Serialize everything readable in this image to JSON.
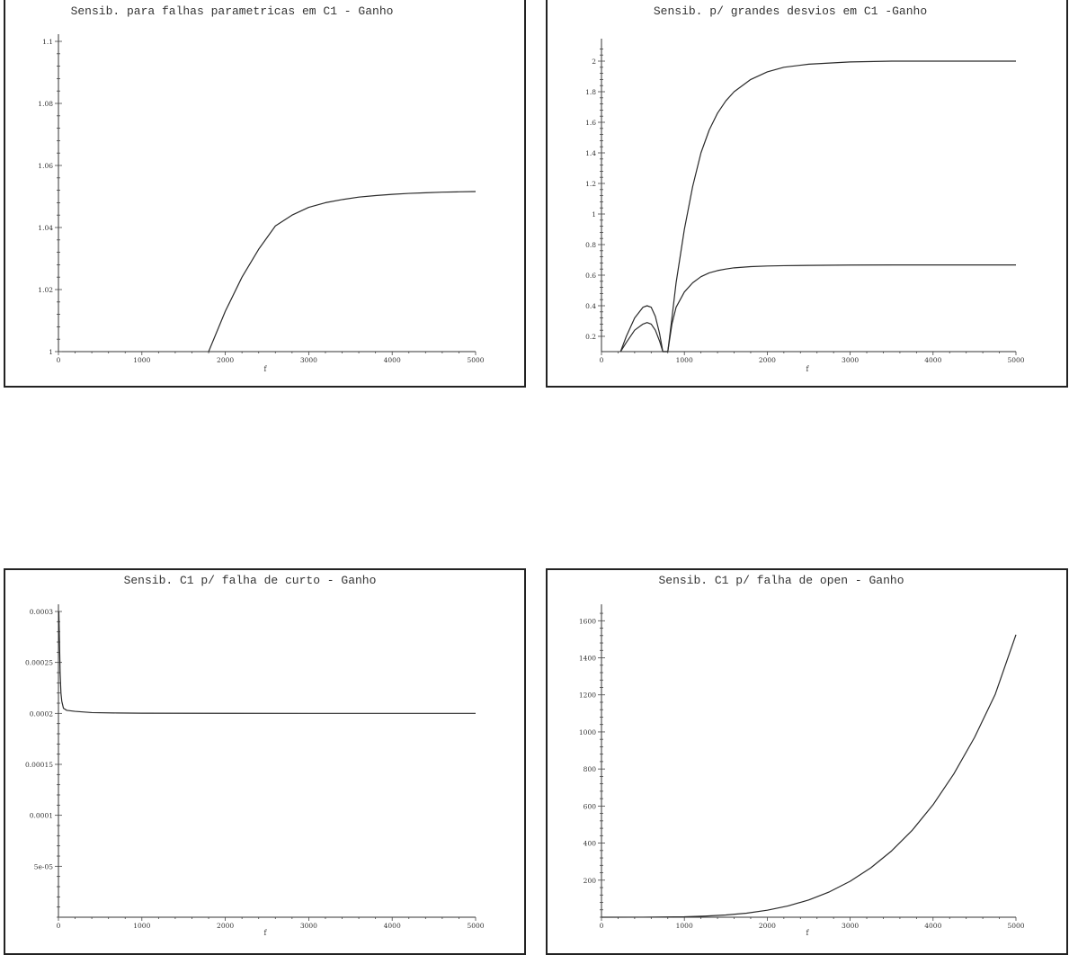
{
  "colors": {
    "line": "#2a2a2a",
    "axis": "#333333",
    "frame": "#222222",
    "background": "#ffffff"
  },
  "chart_data": [
    {
      "type": "line",
      "title": "Sensib. para falhas parametricas em  C1 - Ganho",
      "xlabel": "f",
      "ylabel": "",
      "xlim": [
        0,
        5000
      ],
      "ylim": [
        1,
        1.1
      ],
      "xticks": [
        0,
        1000,
        2000,
        3000,
        4000,
        5000
      ],
      "xtick_labels": [
        "0",
        "1000",
        "2000",
        "3000",
        "4000",
        "5000"
      ],
      "yticks": [
        1,
        1.02,
        1.04,
        1.06,
        1.08,
        1.1
      ],
      "ytick_labels": [
        "1",
        "1.02",
        "1.04",
        "1.06",
        "1.08",
        "1.1"
      ],
      "grid": false,
      "series": [
        {
          "x": [
            1800,
            2000,
            2200,
            2400,
            2600,
            2800,
            3000,
            3200,
            3400,
            3600,
            3800,
            4000,
            4200,
            4400,
            4600,
            4800,
            5000
          ],
          "y": [
            1.0,
            1.013,
            1.024,
            1.033,
            1.0405,
            1.044,
            1.0465,
            1.048,
            1.049,
            1.0498,
            1.0503,
            1.0507,
            1.051,
            1.0512,
            1.0514,
            1.0515,
            1.0516
          ]
        }
      ]
    },
    {
      "type": "line",
      "title": "Sensib. p/ grandes desvios em C1 -Ganho",
      "xlabel": "f",
      "ylabel": "",
      "xlim": [
        0,
        5000
      ],
      "ylim": [
        0.1,
        2.1
      ],
      "xticks": [
        0,
        1000,
        2000,
        3000,
        4000,
        5000
      ],
      "xtick_labels": [
        "0",
        "1000",
        "2000",
        "3000",
        "4000",
        "5000"
      ],
      "yticks": [
        0.2,
        0.4,
        0.6,
        0.8,
        1,
        1.2,
        1.4,
        1.6,
        1.8,
        2
      ],
      "ytick_labels": [
        "0.2",
        "0.4",
        "0.6",
        "0.8",
        "1",
        "1.2",
        "1.4",
        "1.6",
        "1.8",
        "2"
      ],
      "grid": false,
      "series": [
        {
          "x": [
            230,
            300,
            400,
            500,
            550,
            600,
            650,
            700,
            740,
            760,
            780,
            800,
            850,
            900,
            1000,
            1100,
            1200,
            1300,
            1400,
            1500,
            1600,
            1800,
            2000,
            2200,
            2500,
            3000,
            3500,
            4000,
            4500,
            5000
          ],
          "y": [
            0.1,
            0.2,
            0.32,
            0.39,
            0.4,
            0.39,
            0.33,
            0.22,
            0.1,
            0.1,
            0.1,
            0.1,
            0.32,
            0.55,
            0.9,
            1.18,
            1.4,
            1.55,
            1.66,
            1.74,
            1.8,
            1.88,
            1.93,
            1.96,
            1.98,
            1.995,
            2.0,
            2.0,
            2.0,
            2.0
          ]
        },
        {
          "x": [
            230,
            300,
            400,
            500,
            550,
            600,
            650,
            700,
            740,
            760,
            780,
            800,
            850,
            900,
            1000,
            1100,
            1200,
            1300,
            1400,
            1500,
            1600,
            1800,
            2000,
            2200,
            2500,
            3000,
            3500,
            4000,
            4500,
            5000
          ],
          "y": [
            0.1,
            0.16,
            0.24,
            0.28,
            0.29,
            0.28,
            0.24,
            0.17,
            0.1,
            0.1,
            0.1,
            0.1,
            0.28,
            0.39,
            0.49,
            0.55,
            0.59,
            0.615,
            0.63,
            0.64,
            0.648,
            0.656,
            0.66,
            0.662,
            0.664,
            0.666,
            0.667,
            0.667,
            0.667,
            0.667
          ]
        }
      ]
    },
    {
      "type": "line",
      "title": "Sensib. C1 p/ falha de curto - Ganho",
      "xlabel": "f",
      "ylabel": "",
      "xlim": [
        0,
        5000
      ],
      "ylim": [
        0,
        0.0003
      ],
      "xticks": [
        0,
        1000,
        2000,
        3000,
        4000,
        5000
      ],
      "xtick_labels": [
        "0",
        "1000",
        "2000",
        "3000",
        "4000",
        "5000"
      ],
      "yticks": [
        5e-05,
        0.0001,
        0.00015,
        0.0002,
        0.00025,
        0.0003
      ],
      "ytick_labels": [
        "5e-05",
        "0.0001",
        "0.00015",
        "0.0002",
        "0.00025",
        "0.0003"
      ],
      "grid": false,
      "series": [
        {
          "x": [
            5,
            20,
            30,
            40,
            60,
            100,
            200,
            400,
            700,
            1000,
            2000,
            3000,
            4000,
            5000
          ],
          "y": [
            0.0003,
            0.00024,
            0.00022,
            0.000212,
            0.000205,
            0.000203,
            0.000202,
            0.0002008,
            0.0002004,
            0.0002002,
            0.0002001,
            0.0002,
            0.0002,
            0.0002
          ]
        }
      ]
    },
    {
      "type": "line",
      "title": "Sensib. C1 p/ falha de open - Ganho",
      "xlabel": "f",
      "ylabel": "",
      "xlim": [
        0,
        5000
      ],
      "ylim": [
        0,
        1650
      ],
      "xticks": [
        0,
        1000,
        2000,
        3000,
        4000,
        5000
      ],
      "xtick_labels": [
        "0",
        "1000",
        "2000",
        "3000",
        "4000",
        "5000"
      ],
      "yticks": [
        200,
        400,
        600,
        800,
        1000,
        1200,
        1400,
        1600
      ],
      "ytick_labels": [
        "200",
        "400",
        "600",
        "800",
        "1000",
        "1200",
        "1400",
        "1600"
      ],
      "grid": false,
      "series": [
        {
          "x": [
            0,
            500,
            1000,
            1250,
            1500,
            1750,
            2000,
            2250,
            2500,
            2750,
            3000,
            3250,
            3500,
            3750,
            4000,
            4250,
            4500,
            4750,
            5000
          ],
          "y": [
            0,
            0.2,
            2.4,
            6,
            12,
            22,
            38,
            61,
            93,
            137,
            194,
            267,
            358,
            470,
            607,
            773,
            970,
            1203,
            1525
          ]
        }
      ]
    }
  ]
}
